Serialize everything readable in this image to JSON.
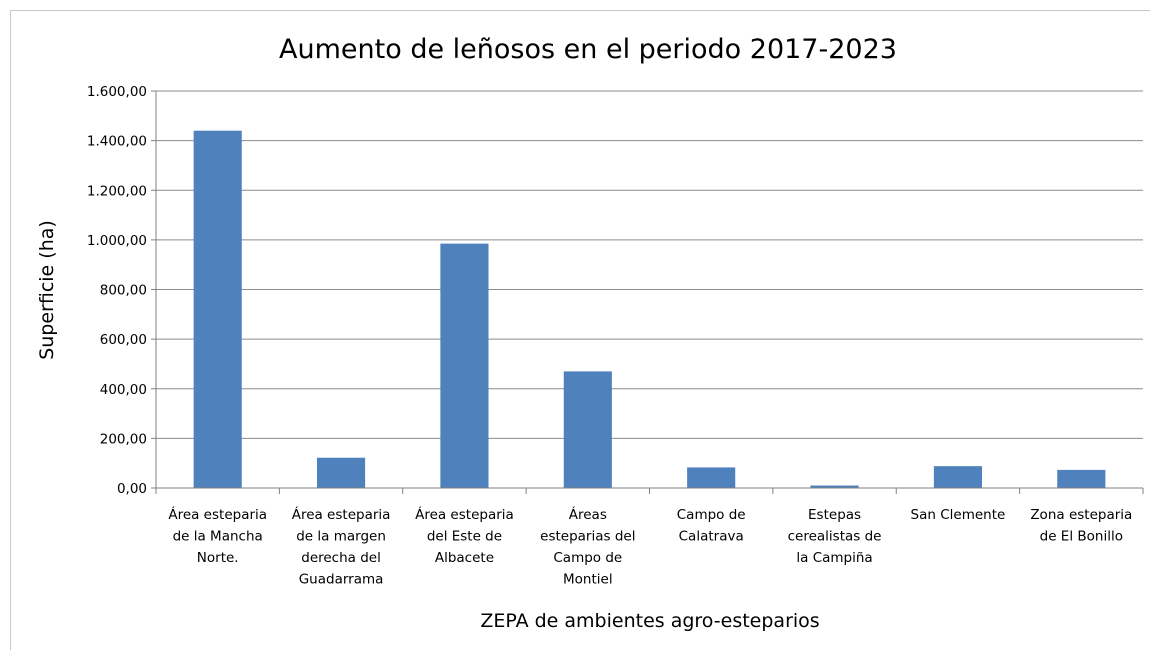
{
  "chart_data": {
    "type": "bar",
    "title": "Aumento de leñosos en el periodo 2017-2023",
    "xlabel": "ZEPA de ambientes agro-esteparios",
    "ylabel": "Superficie (ha)",
    "ylim": [
      0,
      1600
    ],
    "ytick_step": 200,
    "ytick_labels": [
      "0,00",
      "200,00",
      "400,00",
      "600,00",
      "800,00",
      "1.000,00",
      "1.200,00",
      "1.400,00",
      "1.600,00"
    ],
    "grid": true,
    "legend": "none",
    "bar_color": "#4f81bd",
    "categories": [
      [
        "Área esteparia",
        "de la Mancha",
        "Norte."
      ],
      [
        "Área esteparia",
        "de la margen",
        "derecha del",
        "Guadarrama"
      ],
      [
        "Área esteparia",
        "del Este de",
        "Albacete"
      ],
      [
        "Áreas",
        "esteparias del",
        "Campo de",
        "Montiel"
      ],
      [
        "Campo de",
        "Calatrava"
      ],
      [
        "Estepas",
        "cerealistas de",
        "la Campiña"
      ],
      [
        "San Clemente"
      ],
      [
        "Zona esteparia",
        "de El Bonillo"
      ]
    ],
    "values": [
      1440,
      122,
      985,
      470,
      83,
      10,
      88,
      73
    ]
  }
}
